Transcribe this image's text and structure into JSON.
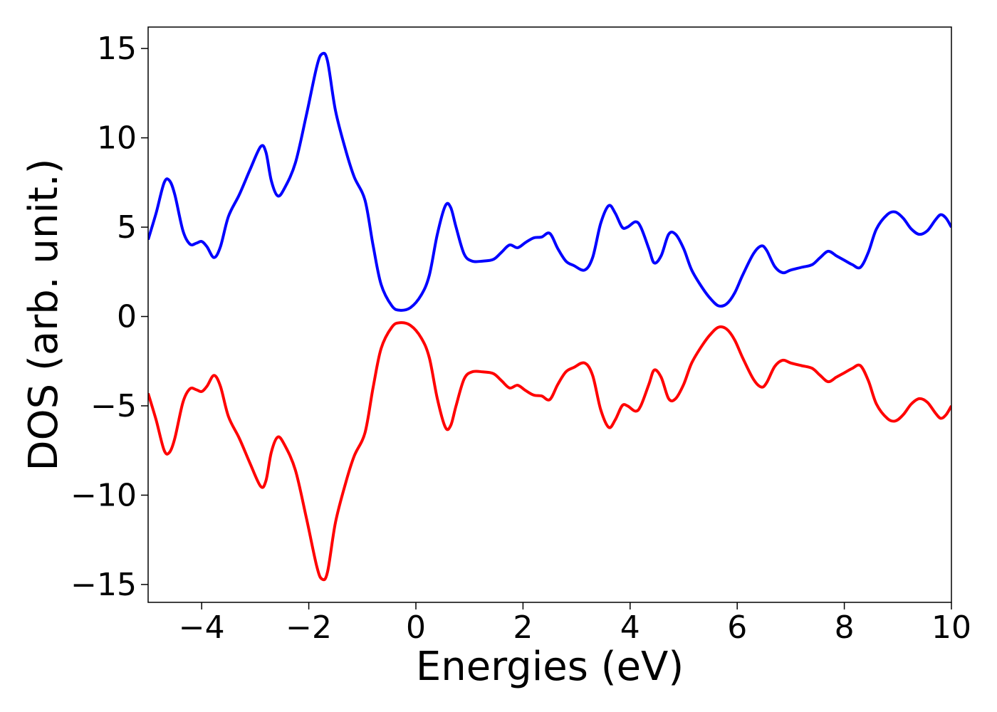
{
  "chart_data": {
    "type": "line",
    "xlabel": "Energies (eV)",
    "ylabel": "DOS (arb. unit.)",
    "xlim": [
      -5,
      10
    ],
    "ylim": [
      -16,
      16.2
    ],
    "xticks": [
      -4,
      -2,
      0,
      2,
      4,
      6,
      8,
      10
    ],
    "yticks": [
      15,
      10,
      5,
      0,
      -5,
      -10,
      -15
    ],
    "grid": false,
    "legend": "none",
    "series": [
      {
        "color": "#0000ff",
        "points": [
          [
            -5.0,
            4.3
          ],
          [
            -4.85,
            5.8
          ],
          [
            -4.7,
            7.5
          ],
          [
            -4.6,
            7.6
          ],
          [
            -4.5,
            6.8
          ],
          [
            -4.35,
            4.8
          ],
          [
            -4.22,
            4.05
          ],
          [
            -4.1,
            4.1
          ],
          [
            -4.0,
            4.2
          ],
          [
            -3.9,
            3.9
          ],
          [
            -3.77,
            3.3
          ],
          [
            -3.65,
            3.9
          ],
          [
            -3.5,
            5.6
          ],
          [
            -3.3,
            6.8
          ],
          [
            -3.1,
            8.2
          ],
          [
            -2.9,
            9.5
          ],
          [
            -2.8,
            9.2
          ],
          [
            -2.7,
            7.6
          ],
          [
            -2.58,
            6.75
          ],
          [
            -2.45,
            7.2
          ],
          [
            -2.25,
            8.6
          ],
          [
            -2.05,
            11.2
          ],
          [
            -1.85,
            14.0
          ],
          [
            -1.75,
            14.7
          ],
          [
            -1.65,
            14.3
          ],
          [
            -1.5,
            11.5
          ],
          [
            -1.3,
            9.2
          ],
          [
            -1.15,
            7.8
          ],
          [
            -0.95,
            6.5
          ],
          [
            -0.8,
            4.0
          ],
          [
            -0.65,
            1.8
          ],
          [
            -0.45,
            0.6
          ],
          [
            -0.3,
            0.35
          ],
          [
            -0.1,
            0.5
          ],
          [
            0.1,
            1.2
          ],
          [
            0.25,
            2.3
          ],
          [
            0.4,
            4.6
          ],
          [
            0.55,
            6.2
          ],
          [
            0.65,
            6.1
          ],
          [
            0.75,
            5.0
          ],
          [
            0.9,
            3.5
          ],
          [
            1.05,
            3.1
          ],
          [
            1.25,
            3.1
          ],
          [
            1.45,
            3.2
          ],
          [
            1.6,
            3.6
          ],
          [
            1.75,
            4.0
          ],
          [
            1.9,
            3.85
          ],
          [
            2.05,
            4.15
          ],
          [
            2.2,
            4.4
          ],
          [
            2.35,
            4.45
          ],
          [
            2.5,
            4.65
          ],
          [
            2.65,
            3.8
          ],
          [
            2.8,
            3.1
          ],
          [
            2.95,
            2.85
          ],
          [
            3.15,
            2.6
          ],
          [
            3.3,
            3.3
          ],
          [
            3.45,
            5.2
          ],
          [
            3.6,
            6.2
          ],
          [
            3.72,
            5.8
          ],
          [
            3.85,
            5.0
          ],
          [
            3.95,
            5.0
          ],
          [
            4.1,
            5.3
          ],
          [
            4.2,
            5.0
          ],
          [
            4.35,
            3.8
          ],
          [
            4.45,
            3.0
          ],
          [
            4.58,
            3.4
          ],
          [
            4.72,
            4.6
          ],
          [
            4.85,
            4.6
          ],
          [
            5.0,
            3.8
          ],
          [
            5.15,
            2.6
          ],
          [
            5.35,
            1.6
          ],
          [
            5.5,
            1.0
          ],
          [
            5.65,
            0.6
          ],
          [
            5.8,
            0.7
          ],
          [
            5.95,
            1.3
          ],
          [
            6.1,
            2.3
          ],
          [
            6.3,
            3.5
          ],
          [
            6.45,
            3.95
          ],
          [
            6.55,
            3.7
          ],
          [
            6.7,
            2.8
          ],
          [
            6.85,
            2.45
          ],
          [
            7.0,
            2.6
          ],
          [
            7.2,
            2.75
          ],
          [
            7.4,
            2.9
          ],
          [
            7.55,
            3.3
          ],
          [
            7.7,
            3.65
          ],
          [
            7.85,
            3.4
          ],
          [
            8.0,
            3.15
          ],
          [
            8.15,
            2.9
          ],
          [
            8.3,
            2.75
          ],
          [
            8.45,
            3.6
          ],
          [
            8.6,
            4.9
          ],
          [
            8.8,
            5.7
          ],
          [
            8.95,
            5.85
          ],
          [
            9.1,
            5.5
          ],
          [
            9.25,
            4.9
          ],
          [
            9.4,
            4.6
          ],
          [
            9.55,
            4.8
          ],
          [
            9.7,
            5.4
          ],
          [
            9.8,
            5.7
          ],
          [
            9.9,
            5.5
          ],
          [
            10.0,
            5.0
          ]
        ]
      },
      {
        "color": "#ff0000",
        "points": [
          [
            -5.0,
            -4.3
          ],
          [
            -4.85,
            -5.8
          ],
          [
            -4.7,
            -7.5
          ],
          [
            -4.6,
            -7.6
          ],
          [
            -4.5,
            -6.8
          ],
          [
            -4.35,
            -4.8
          ],
          [
            -4.22,
            -4.05
          ],
          [
            -4.1,
            -4.1
          ],
          [
            -4.0,
            -4.2
          ],
          [
            -3.9,
            -3.9
          ],
          [
            -3.77,
            -3.3
          ],
          [
            -3.65,
            -3.9
          ],
          [
            -3.5,
            -5.6
          ],
          [
            -3.3,
            -6.8
          ],
          [
            -3.1,
            -8.2
          ],
          [
            -2.9,
            -9.5
          ],
          [
            -2.8,
            -9.2
          ],
          [
            -2.7,
            -7.6
          ],
          [
            -2.58,
            -6.75
          ],
          [
            -2.45,
            -7.2
          ],
          [
            -2.25,
            -8.6
          ],
          [
            -2.05,
            -11.2
          ],
          [
            -1.85,
            -14.0
          ],
          [
            -1.75,
            -14.7
          ],
          [
            -1.65,
            -14.3
          ],
          [
            -1.5,
            -11.5
          ],
          [
            -1.3,
            -9.2
          ],
          [
            -1.15,
            -7.8
          ],
          [
            -0.95,
            -6.5
          ],
          [
            -0.8,
            -4.0
          ],
          [
            -0.65,
            -1.8
          ],
          [
            -0.45,
            -0.6
          ],
          [
            -0.3,
            -0.35
          ],
          [
            -0.1,
            -0.5
          ],
          [
            0.1,
            -1.2
          ],
          [
            0.25,
            -2.3
          ],
          [
            0.4,
            -4.6
          ],
          [
            0.55,
            -6.2
          ],
          [
            0.65,
            -6.1
          ],
          [
            0.75,
            -5.0
          ],
          [
            0.9,
            -3.5
          ],
          [
            1.05,
            -3.1
          ],
          [
            1.25,
            -3.1
          ],
          [
            1.45,
            -3.2
          ],
          [
            1.6,
            -3.6
          ],
          [
            1.75,
            -4.0
          ],
          [
            1.9,
            -3.85
          ],
          [
            2.05,
            -4.15
          ],
          [
            2.2,
            -4.4
          ],
          [
            2.35,
            -4.45
          ],
          [
            2.5,
            -4.65
          ],
          [
            2.65,
            -3.8
          ],
          [
            2.8,
            -3.1
          ],
          [
            2.95,
            -2.85
          ],
          [
            3.15,
            -2.6
          ],
          [
            3.3,
            -3.3
          ],
          [
            3.45,
            -5.2
          ],
          [
            3.6,
            -6.2
          ],
          [
            3.72,
            -5.8
          ],
          [
            3.85,
            -5.0
          ],
          [
            3.95,
            -5.0
          ],
          [
            4.1,
            -5.3
          ],
          [
            4.2,
            -5.0
          ],
          [
            4.35,
            -3.8
          ],
          [
            4.45,
            -3.0
          ],
          [
            4.58,
            -3.4
          ],
          [
            4.72,
            -4.6
          ],
          [
            4.85,
            -4.6
          ],
          [
            5.0,
            -3.8
          ],
          [
            5.15,
            -2.6
          ],
          [
            5.35,
            -1.6
          ],
          [
            5.5,
            -1.0
          ],
          [
            5.65,
            -0.6
          ],
          [
            5.8,
            -0.7
          ],
          [
            5.95,
            -1.3
          ],
          [
            6.1,
            -2.3
          ],
          [
            6.3,
            -3.5
          ],
          [
            6.45,
            -3.95
          ],
          [
            6.55,
            -3.7
          ],
          [
            6.7,
            -2.8
          ],
          [
            6.85,
            -2.45
          ],
          [
            7.0,
            -2.6
          ],
          [
            7.2,
            -2.75
          ],
          [
            7.4,
            -2.9
          ],
          [
            7.55,
            -3.3
          ],
          [
            7.7,
            -3.65
          ],
          [
            7.85,
            -3.4
          ],
          [
            8.0,
            -3.15
          ],
          [
            8.15,
            -2.9
          ],
          [
            8.3,
            -2.75
          ],
          [
            8.45,
            -3.6
          ],
          [
            8.6,
            -4.9
          ],
          [
            8.8,
            -5.7
          ],
          [
            8.95,
            -5.85
          ],
          [
            9.1,
            -5.5
          ],
          [
            9.25,
            -4.9
          ],
          [
            9.4,
            -4.6
          ],
          [
            9.55,
            -4.8
          ],
          [
            9.7,
            -5.4
          ],
          [
            9.8,
            -5.7
          ],
          [
            9.9,
            -5.5
          ],
          [
            10.0,
            -5.0
          ]
        ]
      }
    ]
  }
}
